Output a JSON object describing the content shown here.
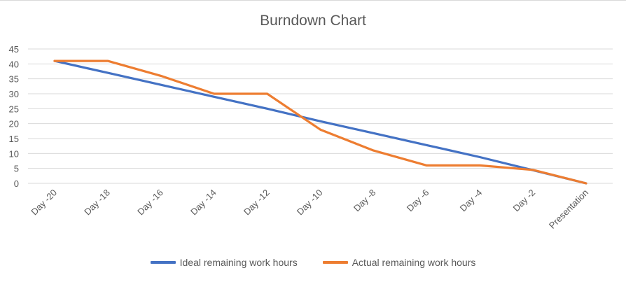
{
  "chart_data": {
    "type": "line",
    "title": "Burndown Chart",
    "xlabel": "",
    "ylabel": "",
    "categories": [
      "Day -20",
      "Day -18",
      "Day -16",
      "Day -14",
      "Day -12",
      "Day -10",
      "Day -8",
      "Day -6",
      "Day -4",
      "Day -2",
      "Presentation"
    ],
    "ylim": [
      0,
      45
    ],
    "yticks": [
      0,
      5,
      10,
      15,
      20,
      25,
      30,
      35,
      40,
      45
    ],
    "grid": true,
    "legend_position": "bottom",
    "series": [
      {
        "name": "Ideal remaining work hours",
        "color": "#4472c4",
        "values": [
          41,
          37,
          33,
          29,
          25,
          20.8,
          16.8,
          12.8,
          8.8,
          4.4,
          0
        ]
      },
      {
        "name": "Actual remaining work hours",
        "color": "#ed7d31",
        "values": [
          41,
          41,
          36,
          30,
          30,
          18,
          11,
          6,
          6,
          4.5,
          0
        ]
      }
    ]
  }
}
